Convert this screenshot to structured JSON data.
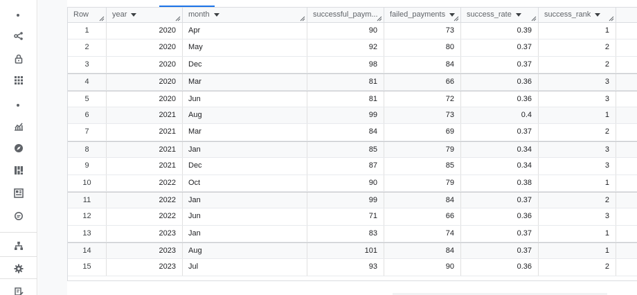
{
  "sidebar": {
    "items": [
      {
        "icon": "dot-icon",
        "type": "dot",
        "name": "sidebar-dot-top"
      },
      {
        "icon": "share-icon",
        "type": "icon",
        "name": "sidebar-item-connections"
      },
      {
        "icon": "lock-icon",
        "type": "icon",
        "name": "sidebar-item-security"
      },
      {
        "icon": "apps-grid-icon",
        "type": "icon",
        "name": "sidebar-item-apps"
      },
      {
        "icon": "dot-icon",
        "type": "dot",
        "name": "sidebar-dot-middle"
      },
      {
        "icon": "analytics-icon",
        "type": "icon",
        "name": "sidebar-item-analytics"
      },
      {
        "icon": "compass-icon",
        "type": "icon",
        "name": "sidebar-item-explore"
      },
      {
        "icon": "dashboard-icon",
        "type": "icon",
        "name": "sidebar-item-dashboards"
      },
      {
        "icon": "table-view-icon",
        "type": "icon",
        "name": "sidebar-item-tables"
      },
      {
        "icon": "chat-icon",
        "type": "icon",
        "name": "sidebar-item-chat"
      },
      {
        "icon": "hierarchy-icon",
        "type": "icon",
        "name": "sidebar-item-lineage"
      },
      {
        "icon": "gear-icon",
        "type": "icon",
        "name": "sidebar-item-settings"
      },
      {
        "icon": "edit-doc-icon",
        "type": "icon",
        "name": "sidebar-item-notes"
      }
    ]
  },
  "table": {
    "columns": [
      {
        "label": "Row",
        "sortable": false
      },
      {
        "label": "year",
        "sortable": true
      },
      {
        "label": "month",
        "sortable": true
      },
      {
        "label": "successful_paym...",
        "sortable": false
      },
      {
        "label": "failed_payments",
        "sortable": true
      },
      {
        "label": "success_rate",
        "sortable": true
      },
      {
        "label": "success_rank",
        "sortable": true
      },
      {
        "label": "",
        "sortable": false
      }
    ],
    "rows": [
      [
        "1",
        "2020",
        "Apr",
        "90",
        "73",
        "0.39",
        "1"
      ],
      [
        "2",
        "2020",
        "May",
        "92",
        "80",
        "0.37",
        "2"
      ],
      [
        "3",
        "2020",
        "Dec",
        "98",
        "84",
        "0.37",
        "2"
      ],
      [
        "4",
        "2020",
        "Mar",
        "81",
        "66",
        "0.36",
        "3"
      ],
      [
        "5",
        "2020",
        "Jun",
        "81",
        "72",
        "0.36",
        "3"
      ],
      [
        "6",
        "2021",
        "Aug",
        "99",
        "73",
        "0.4",
        "1"
      ],
      [
        "7",
        "2021",
        "Mar",
        "84",
        "69",
        "0.37",
        "2"
      ],
      [
        "8",
        "2021",
        "Jan",
        "85",
        "79",
        "0.34",
        "3"
      ],
      [
        "9",
        "2021",
        "Dec",
        "87",
        "85",
        "0.34",
        "3"
      ],
      [
        "10",
        "2022",
        "Oct",
        "90",
        "79",
        "0.38",
        "1"
      ],
      [
        "11",
        "2022",
        "Jan",
        "99",
        "84",
        "0.37",
        "2"
      ],
      [
        "12",
        "2022",
        "Jun",
        "71",
        "66",
        "0.36",
        "3"
      ],
      [
        "13",
        "2023",
        "Jan",
        "83",
        "74",
        "0.37",
        "1"
      ],
      [
        "14",
        "2023",
        "Aug",
        "101",
        "84",
        "0.37",
        "1"
      ],
      [
        "15",
        "2023",
        "Jul",
        "93",
        "90",
        "0.36",
        "2"
      ]
    ],
    "alt_rows": [
      3,
      5,
      7,
      10,
      13
    ],
    "group_top_rows": [
      3,
      4,
      7,
      10,
      13
    ]
  },
  "colors": {
    "accent": "#1a73e8",
    "header_bg": "#f8f9fa",
    "border": "#dadce0"
  }
}
